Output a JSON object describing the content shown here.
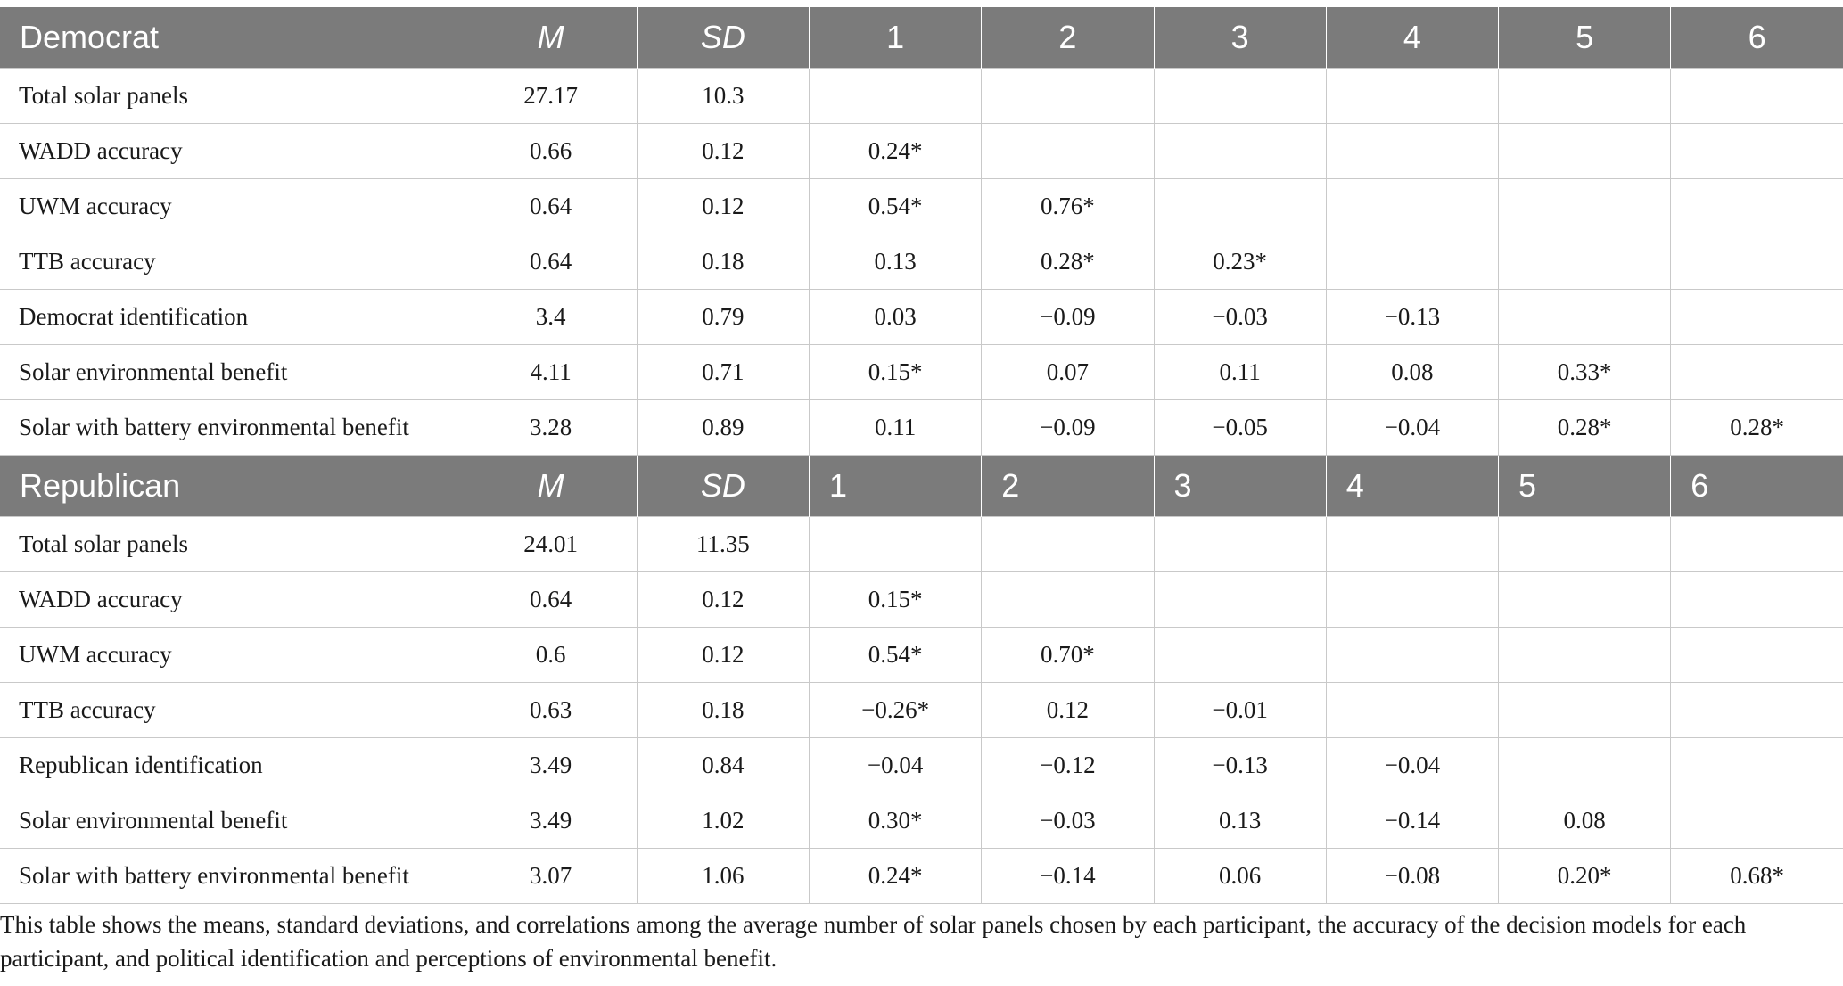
{
  "sections": [
    {
      "header": [
        "Democrat",
        "M",
        "SD",
        "1",
        "2",
        "3",
        "4",
        "5",
        "6"
      ],
      "header_align": "center",
      "rows": [
        [
          "Total solar panels",
          "27.17",
          "10.3",
          "",
          "",
          "",
          "",
          "",
          ""
        ],
        [
          "WADD accuracy",
          "0.66",
          "0.12",
          "0.24*",
          "",
          "",
          "",
          "",
          ""
        ],
        [
          "UWM accuracy",
          "0.64",
          "0.12",
          "0.54*",
          "0.76*",
          "",
          "",
          "",
          ""
        ],
        [
          "TTB accuracy",
          "0.64",
          "0.18",
          "0.13",
          "0.28*",
          "0.23*",
          "",
          "",
          ""
        ],
        [
          "Democrat identification",
          "3.4",
          "0.79",
          "0.03",
          "−0.09",
          "−0.03",
          "−0.13",
          "",
          ""
        ],
        [
          "Solar environmental benefit",
          "4.11",
          "0.71",
          "0.15*",
          "0.07",
          "0.11",
          "0.08",
          "0.33*",
          ""
        ],
        [
          "Solar with battery environmental benefit",
          "3.28",
          "0.89",
          "0.11",
          "−0.09",
          "−0.05",
          "−0.04",
          "0.28*",
          "0.28*"
        ]
      ]
    },
    {
      "header": [
        "Republican",
        "M",
        "SD",
        "1",
        "2",
        "3",
        "4",
        "5",
        "6"
      ],
      "header_align": "left",
      "rows": [
        [
          "Total solar panels",
          "24.01",
          "11.35",
          "",
          "",
          "",
          "",
          "",
          ""
        ],
        [
          "WADD accuracy",
          "0.64",
          "0.12",
          "0.15*",
          "",
          "",
          "",
          "",
          ""
        ],
        [
          "UWM accuracy",
          "0.6",
          "0.12",
          "0.54*",
          "0.70*",
          "",
          "",
          "",
          ""
        ],
        [
          "TTB accuracy",
          "0.63",
          "0.18",
          "−0.26*",
          "0.12",
          "−0.01",
          "",
          "",
          ""
        ],
        [
          "Republican identification",
          "3.49",
          "0.84",
          "−0.04",
          "−0.12",
          "−0.13",
          "−0.04",
          "",
          ""
        ],
        [
          "Solar environmental benefit",
          "3.49",
          "1.02",
          "0.30*",
          "−0.03",
          "0.13",
          "−0.14",
          "0.08",
          ""
        ],
        [
          "Solar with battery environmental benefit",
          "3.07",
          "1.06",
          "0.24*",
          "−0.14",
          "0.06",
          "−0.08",
          "0.20*",
          "0.68*"
        ]
      ]
    }
  ],
  "note": "This table shows the means, standard deviations, and correlations among the average number of solar panels chosen by each participant, the accuracy of the decision models for each participant, and political identification and perceptions of environmental benefit.",
  "colors": {
    "header_bg": "#7b7b7b",
    "header_text": "#ffffff",
    "grid": "#c9c9c9"
  }
}
